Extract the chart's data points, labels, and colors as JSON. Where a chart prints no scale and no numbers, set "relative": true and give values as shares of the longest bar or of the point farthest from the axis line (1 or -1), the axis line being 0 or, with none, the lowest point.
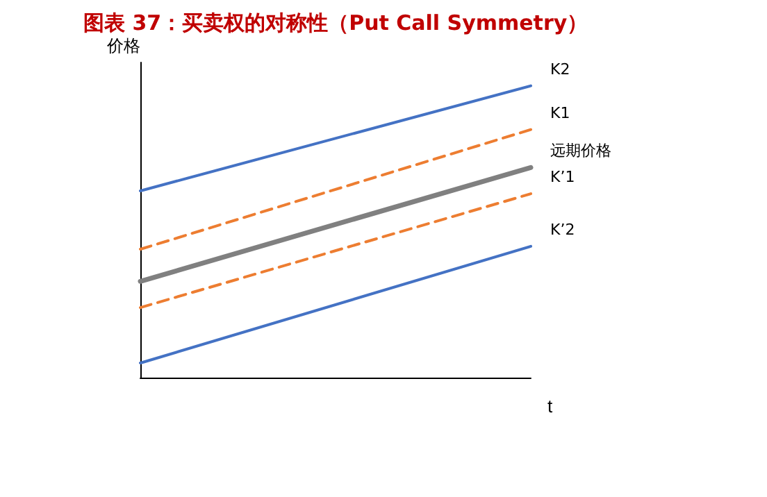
{
  "chart_data": {
    "type": "line",
    "title": "图表 37：买卖权的对称性（Put Call Symmetry）",
    "xlabel": "t",
    "ylabel": "价格",
    "relative": true,
    "categories": [
      null,
      null
    ],
    "series": [
      {
        "name": "K2",
        "color": "#4472c4",
        "values": [
          0.64,
          1
        ],
        "line_style": "solid"
      },
      {
        "name": "K1",
        "color": "#ed7d31",
        "values": [
          0.44,
          0.85
        ],
        "line_style": "dashed"
      },
      {
        "name": "远期价格",
        "color": "#808080",
        "values": [
          0.33,
          0.72
        ],
        "line_style": "solid"
      },
      {
        "name": "K’1",
        "color": "#ed7d31",
        "values": [
          0.24,
          0.63
        ],
        "line_style": "dashed"
      },
      {
        "name": "K’2",
        "color": "#4472c4",
        "values": [
          0.05,
          0.45
        ],
        "line_style": "solid"
      }
    ],
    "legend": false,
    "grid": false,
    "marker": "none"
  }
}
